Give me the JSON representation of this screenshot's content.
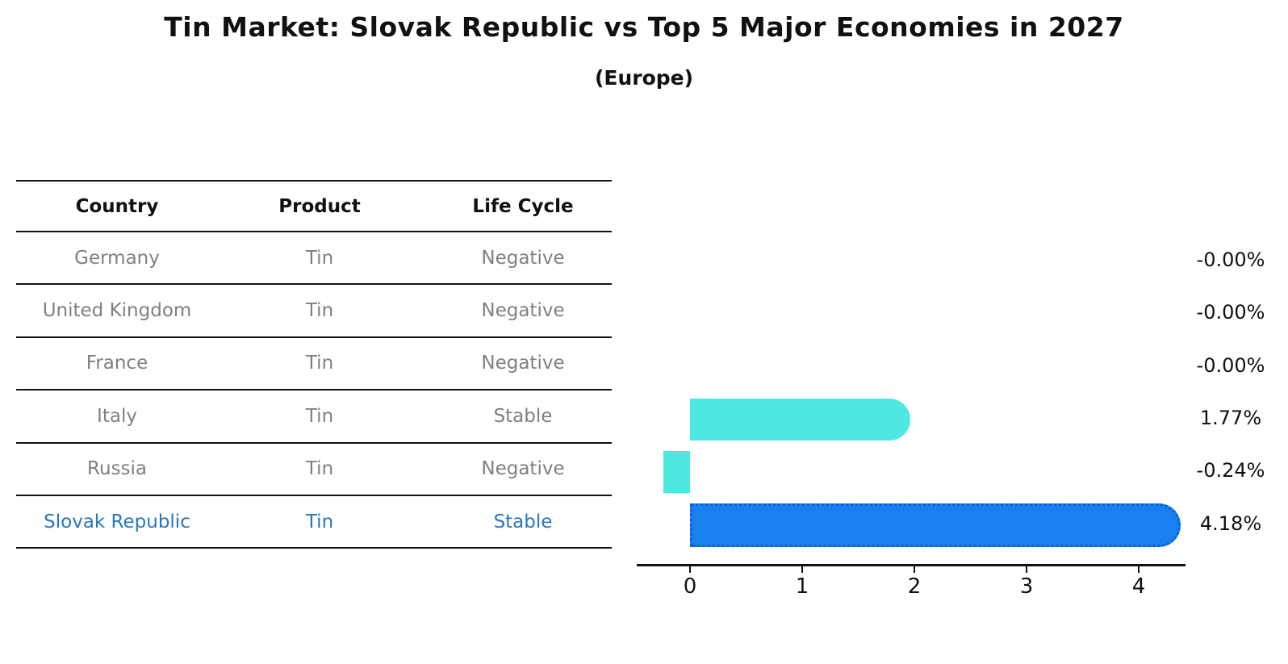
{
  "header": {
    "title": "Tin Market: Slovak Republic vs Top 5 Major Economies in 2027",
    "subtitle": "(Europe)"
  },
  "table": {
    "columns": [
      "Country",
      "Product",
      "Life Cycle"
    ],
    "rows": [
      {
        "country": "Germany",
        "product": "Tin",
        "life_cycle": "Negative",
        "highlighted": false
      },
      {
        "country": "United Kingdom",
        "product": "Tin",
        "life_cycle": "Negative",
        "highlighted": false
      },
      {
        "country": "France",
        "product": "Tin",
        "life_cycle": "Negative",
        "highlighted": false
      },
      {
        "country": "Italy",
        "product": "Tin",
        "life_cycle": "Stable",
        "highlighted": false
      },
      {
        "country": "Russia",
        "product": "Tin",
        "life_cycle": "Negative",
        "highlighted": false
      },
      {
        "country": "Slovak Republic",
        "product": "Tin",
        "life_cycle": "Stable",
        "highlighted": true
      }
    ]
  },
  "chart_data": {
    "type": "bar",
    "orientation": "horizontal",
    "title": "Tin Market: Slovak Republic vs Top 5 Major Economies in 2027",
    "subtitle": "(Europe)",
    "categories": [
      "Germany",
      "United Kingdom",
      "France",
      "Italy",
      "Russia",
      "Slovak Republic"
    ],
    "values": [
      -0.0,
      -0.0,
      -0.0,
      1.77,
      -0.24,
      4.18
    ],
    "value_labels": [
      "-0.00%",
      "-0.00%",
      "-0.00%",
      "1.77%",
      "-0.24%",
      "4.18%"
    ],
    "highlighted_category": "Slovak Republic",
    "x_ticks": [
      0,
      1,
      2,
      3,
      4
    ],
    "xlim": [
      -0.47,
      4.42
    ],
    "grid": false,
    "legend": false
  },
  "colors": {
    "bar_default": "#4de8e0",
    "bar_highlight": "#1a80f0",
    "bar_highlight_border": "#0d5fd8",
    "highlight_text": "#2878be",
    "muted_text": "#808080",
    "line": "#111111"
  }
}
